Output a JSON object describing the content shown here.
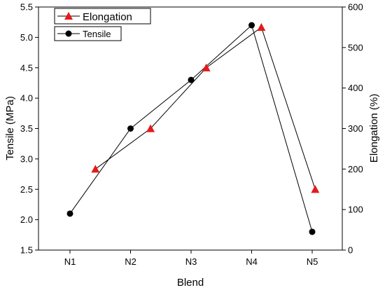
{
  "chart_data": {
    "type": "line",
    "xlabel": "Blend",
    "ylabel_left": "Tensile (MPa)",
    "ylabel_right": "Elongation (%)",
    "categories": [
      "N1",
      "N2",
      "N3",
      "N4",
      "N5"
    ],
    "ylim_left": [
      1.5,
      5.5
    ],
    "ylim_right": [
      0,
      600
    ],
    "yticks_left": [
      "1.5",
      "2.0",
      "2.5",
      "3.0",
      "3.5",
      "4.0",
      "4.5",
      "5.0",
      "5.5"
    ],
    "yticks_right": [
      "0",
      "100",
      "200",
      "300",
      "400",
      "500",
      "600"
    ],
    "series": [
      {
        "name": "Tensile",
        "axis": "left",
        "marker": "circle",
        "color": "#000000",
        "points": [
          {
            "x": 1.0,
            "y": 2.1
          },
          {
            "x": 2.0,
            "y": 3.5
          },
          {
            "x": 3.0,
            "y": 4.3
          },
          {
            "x": 4.0,
            "y": 5.2
          },
          {
            "x": 5.0,
            "y": 1.8
          }
        ]
      },
      {
        "name": "Elongation",
        "axis": "right",
        "marker": "triangle",
        "color": "#e31a1c",
        "points": [
          {
            "x": 1.42,
            "y": 200
          },
          {
            "x": 2.33,
            "y": 300
          },
          {
            "x": 3.25,
            "y": 450
          },
          {
            "x": 4.16,
            "y": 550
          },
          {
            "x": 5.05,
            "y": 150
          }
        ]
      }
    ],
    "legend": {
      "position": "top-left",
      "entries": [
        "Elongation",
        "Tensile"
      ]
    },
    "grid": false
  }
}
